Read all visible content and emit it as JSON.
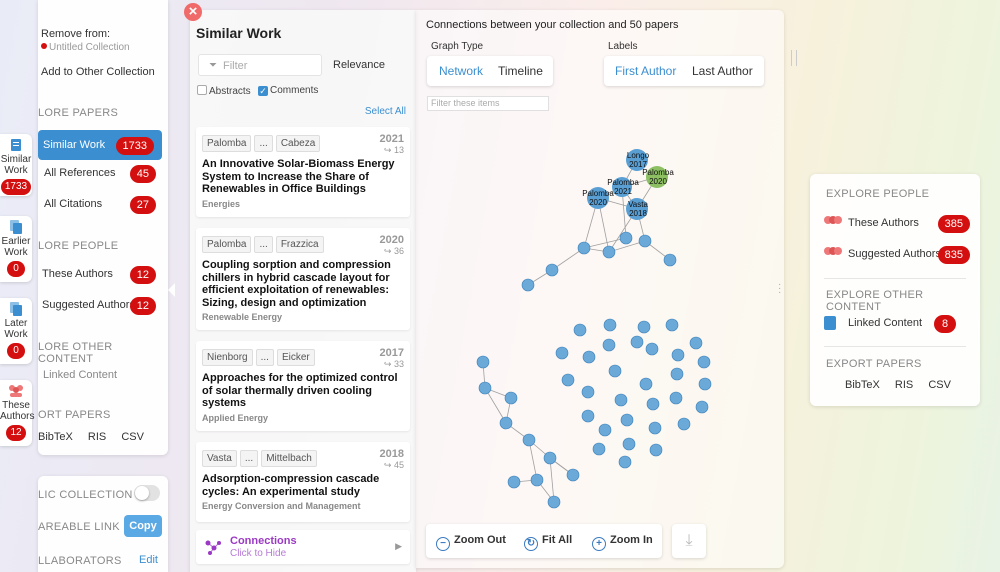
{
  "close_symbol": "×",
  "strip": {
    "items": [
      {
        "label_1": "Similar",
        "label_2": "Work",
        "count": "1733",
        "icon": "document-icon"
      },
      {
        "label_1": "Earlier",
        "label_2": "Work",
        "count": "0",
        "icon": "documents-icon"
      },
      {
        "label_1": "Later",
        "label_2": "Work",
        "count": "0",
        "icon": "documents-icon"
      },
      {
        "label_1": "These",
        "label_2": "Authors",
        "count": "12",
        "icon": "people-icon"
      }
    ]
  },
  "sidebar": {
    "remove_from": "Remove from:",
    "collection_name": "Untitled Collection",
    "add_to_other": "Add to Other Collection",
    "explore_papers": "LORE PAPERS",
    "similar_work": {
      "label": "Similar Work",
      "count": "1733"
    },
    "all_references": {
      "label": "All References",
      "count": "45"
    },
    "all_citations": {
      "label": "All Citations",
      "count": "27"
    },
    "explore_people": "LORE PEOPLE",
    "these_authors": {
      "label": "These Authors",
      "count": "12"
    },
    "suggested_authors": {
      "label": "Suggested Authors",
      "count": "12"
    },
    "explore_other": "LORE OTHER CONTENT",
    "linked_content": "Linked Content",
    "export_papers": "ORT PAPERS",
    "export_bibtex": "BibTeX",
    "export_ris": "RIS",
    "export_csv": "CSV"
  },
  "settings": {
    "public_collection": "LIC COLLECTION",
    "shareable_link": "AREABLE LINK",
    "copy_button": "Copy",
    "collaborators": "LLABORATORS",
    "edit_link": "Edit"
  },
  "list": {
    "title": "Similar Work",
    "filter_placeholder": "Filter",
    "sort_label": "Relevance",
    "abstracts_label": "Abstracts",
    "comments_label": "Comments",
    "select_all": "Select All",
    "ellipsis": "...",
    "citation_arrow": "↪",
    "cards": [
      {
        "first_author": "Palomba",
        "last_author": "Cabeza",
        "year": "2021",
        "citations": "13",
        "title": "An Innovative Solar-Biomass Energy System to Increase the Share of Renewables in Office Buildings",
        "journal": "Energies"
      },
      {
        "first_author": "Palomba",
        "last_author": "Frazzica",
        "year": "2020",
        "citations": "36",
        "title": "Coupling sorption and compression chillers in hybrid cascade layout for efficient exploitation of renewables: Sizing, design and optimization",
        "journal": "Renewable Energy"
      },
      {
        "first_author": "Nienborg",
        "last_author": "Eicker",
        "year": "2017",
        "citations": "33",
        "title": "Approaches for the optimized control of solar thermally driven cooling systems",
        "journal": "Applied Energy"
      },
      {
        "first_author": "Vasta",
        "last_author": "Mittelbach",
        "year": "2018",
        "citations": "45",
        "title": "Adsorption-compression cascade cycles: An experimental study",
        "journal": "Energy Conversion and Management"
      }
    ],
    "connections_label": "Connections",
    "connections_sub": "Click to Hide"
  },
  "graph": {
    "header": "Connections between your collection and 50 papers",
    "graph_type_label": "Graph Type",
    "network": "Network",
    "timeline": "Timeline",
    "labels_label": "Labels",
    "first_author": "First Author",
    "last_author": "Last Author",
    "filter_placeholder": "Filter these items",
    "zoom_out": "Zoom Out",
    "fit_all": "Fit All",
    "zoom_in": "Zoom In",
    "node_labels": [
      {
        "name": "Longo",
        "year": "2017"
      },
      {
        "name": "Palomba",
        "year": "2020"
      },
      {
        "name": "Palomba",
        "year": "2021"
      },
      {
        "name": "Palomba",
        "year": "2020"
      },
      {
        "name": "Vasta",
        "year": "2018"
      }
    ]
  },
  "right_panel": {
    "explore_people": "EXPLORE PEOPLE",
    "these_authors": {
      "label": "These Authors",
      "count": "385"
    },
    "suggested_authors": {
      "label": "Suggested Authors",
      "count": "835"
    },
    "explore_other": "EXPLORE OTHER CONTENT",
    "linked_content": {
      "label": "Linked Content",
      "count": "8"
    },
    "export_papers": "EXPORT PAPERS",
    "bibtex": "BibTeX",
    "ris": "RIS",
    "csv": "CSV"
  },
  "colors": {
    "accent": "#3b8fd0",
    "badge": "#d40f0f",
    "node_blue": "#5a9fd4",
    "node_green": "#8cc063",
    "connections": "#9b39c4"
  }
}
